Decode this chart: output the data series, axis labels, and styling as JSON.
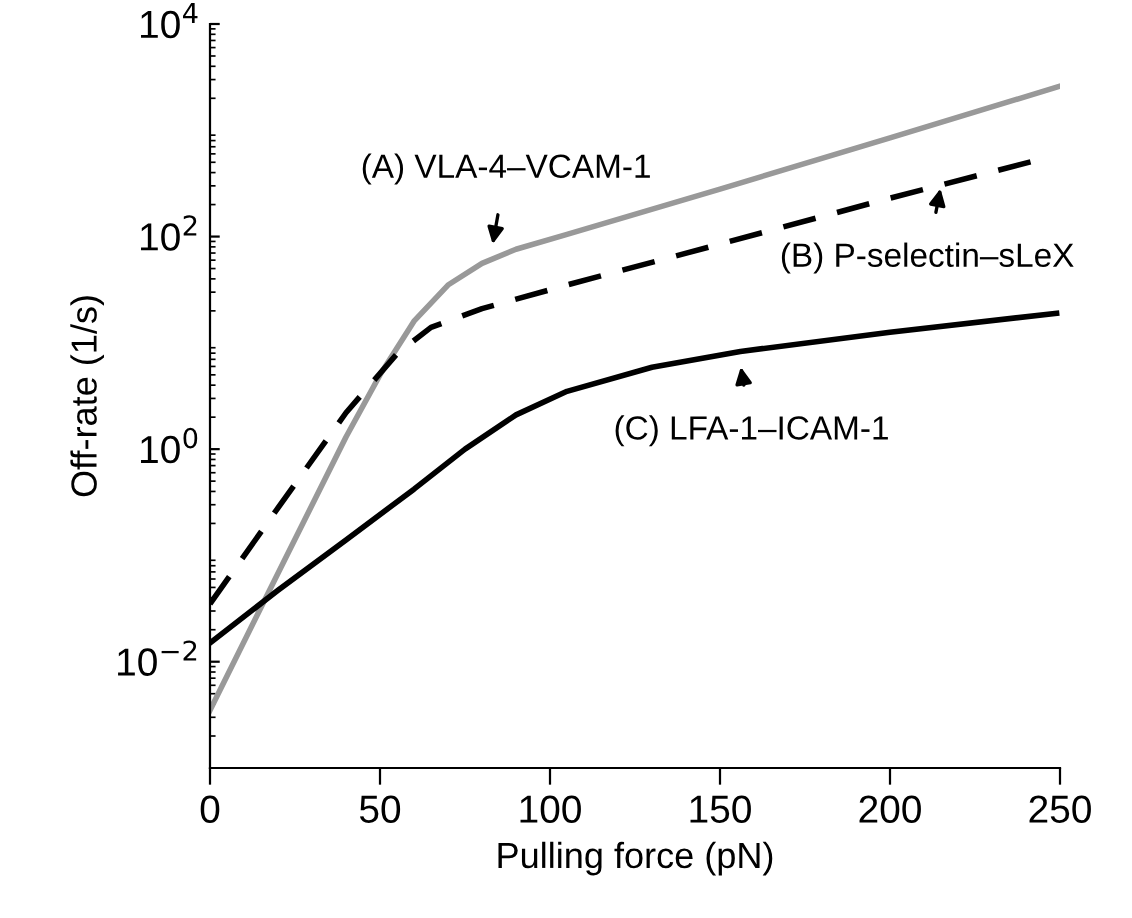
{
  "chart_data": {
    "type": "line",
    "xlabel": "Pulling force (pN)",
    "ylabel": "Off-rate (1/s)",
    "log": "y",
    "xlim": [
      0,
      250
    ],
    "xticks": [
      0,
      50,
      100,
      150,
      200,
      250
    ],
    "ylim": [
      0.001,
      10000
    ],
    "yticks": [
      {
        "value": 0.01,
        "label": "10$^{−2}$"
      },
      {
        "value": 1,
        "label": "10$^{0}$"
      },
      {
        "value": 100,
        "label": "10$^{2}$"
      },
      {
        "value": 10000,
        "label": "10$^{4}$"
      }
    ],
    "grid": false,
    "legend": false,
    "marker": "none",
    "series": [
      {
        "color": "#999999",
        "line_style": "solid",
        "x": [
          0,
          20,
          40,
          50,
          60,
          70,
          80,
          90,
          105,
          150,
          200,
          250
        ],
        "values": [
          0.0035,
          0.068,
          1.3,
          5,
          16,
          35,
          56,
          76,
          105,
          280,
          850,
          2600
        ]
      },
      {
        "color": "#000000",
        "line_style": "dashed",
        "x": [
          0,
          20,
          40,
          55,
          65,
          80,
          105,
          150,
          200,
          243
        ],
        "values": [
          0.035,
          0.28,
          2.2,
          7.9,
          14,
          21,
          35,
          85,
          230,
          520
        ]
      },
      {
        "color": "#000000",
        "line_style": "solid",
        "x": [
          0,
          20,
          40,
          60,
          75,
          90,
          105,
          130,
          156,
          200,
          249
        ],
        "values": [
          0.015,
          0.047,
          0.14,
          0.42,
          1.0,
          2.1,
          3.5,
          5.9,
          8.3,
          12.6,
          19
        ]
      }
    ],
    "annotations": [
      {
        "text": "(A) VLA-4–VCAM-1",
        "x": 83,
        "y": 80
      },
      {
        "text": "(B) P-selectin–sLeX",
        "x": 215,
        "y": 300
      },
      {
        "text": "(C) LFA-1–ICAM-1",
        "x": 156,
        "y": 6.3
      }
    ]
  }
}
